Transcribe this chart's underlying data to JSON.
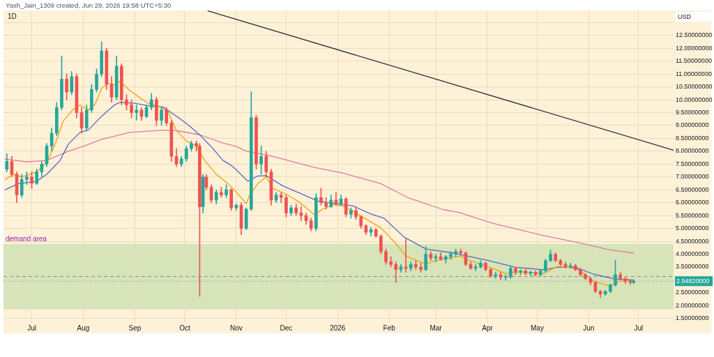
{
  "chart_data": {
    "type": "candlestick",
    "title": "1D",
    "ylabel": "USD",
    "annotations": [
      "Yash_Jain_1309 created, Jun 29, 2026 19:58 UTC+5:30"
    ],
    "xlim": [
      "2025-06-14",
      "2026-07-22"
    ],
    "xticks": [
      {
        "value": "2025-07-01",
        "label": "Jul"
      },
      {
        "value": "2025-08-01",
        "label": "Aug"
      },
      {
        "value": "2025-09-01",
        "label": "Sep"
      },
      {
        "value": "2025-10-01",
        "label": "Oct"
      },
      {
        "value": "2025-11-01",
        "label": "Nov"
      },
      {
        "value": "2025-12-01",
        "label": "Dec"
      },
      {
        "value": "2026-01-01",
        "label": "2026"
      },
      {
        "value": "2026-02-01",
        "label": "Feb"
      },
      {
        "value": "2026-03-01",
        "label": "Mar"
      },
      {
        "value": "2026-04-01",
        "label": "Apr"
      },
      {
        "value": "2026-05-01",
        "label": "May"
      },
      {
        "value": "2026-06-01",
        "label": "Jun"
      },
      {
        "value": "2026-07-01",
        "label": "Jul"
      }
    ],
    "ylim": [
      1.33,
      13.47
    ],
    "yticks": [
      {
        "value": 1.5,
        "label": "1.50000000"
      },
      {
        "value": 2,
        "label": "2.00000000"
      },
      {
        "value": 2.5,
        "label": "2.50000000"
      },
      {
        "value": 3,
        "label": null
      },
      {
        "value": 3.5,
        "label": "3.50000000"
      },
      {
        "value": 4,
        "label": "4.00000000"
      },
      {
        "value": 4.5,
        "label": "4.50000000"
      },
      {
        "value": 5,
        "label": "5.00000000"
      },
      {
        "value": 5.5,
        "label": "5.50000000"
      },
      {
        "value": 6,
        "label": "6.00000000"
      },
      {
        "value": 6.5,
        "label": "6.50000000"
      },
      {
        "value": 7,
        "label": "7.00000000"
      },
      {
        "value": 7.5,
        "label": "7.50000000"
      },
      {
        "value": 8,
        "label": "8.00000000"
      },
      {
        "value": 8.5,
        "label": "8.50000000"
      },
      {
        "value": 9,
        "label": "9.00000000"
      },
      {
        "value": 9.5,
        "label": "9.50000000"
      },
      {
        "value": 10,
        "label": "10.00000000"
      },
      {
        "value": 10.5,
        "label": "10.50000000"
      },
      {
        "value": 11,
        "label": "11.00000000"
      },
      {
        "value": 11.5,
        "label": "11.50000000"
      },
      {
        "value": 12,
        "label": "12.00000000"
      },
      {
        "value": 12.5,
        "label": "12.50000000"
      },
      {
        "value": 13,
        "label": null
      }
    ],
    "grid": true,
    "bands": [
      {
        "axis": "y",
        "from": 1.86,
        "to": 4.39,
        "label": "demand area",
        "color": "#d6e4b9"
      }
    ],
    "ref_lines": [
      {
        "axis": "y",
        "value": 3.13,
        "color": "#a07ca0",
        "line_style": "dashed"
      },
      {
        "axis": "y",
        "value": 2.9482,
        "label": "2.94820000",
        "color": "#26a69a",
        "line_style": "dotted"
      }
    ],
    "series": [
      {
        "x": [
          "2025-06-16",
          "2025-06-19",
          "2025-06-22",
          "2025-06-25",
          "2025-06-28",
          "2025-07-01",
          "2025-07-04",
          "2025-07-07",
          "2025-07-10",
          "2025-07-13",
          "2025-07-16",
          "2025-07-19",
          "2025-07-22",
          "2025-07-25",
          "2025-07-28",
          "2025-07-31",
          "2025-08-03",
          "2025-08-06",
          "2025-08-09",
          "2025-08-12",
          "2025-08-15",
          "2025-08-18",
          "2025-08-21",
          "2025-08-24",
          "2025-08-27",
          "2025-08-30",
          "2025-09-02",
          "2025-09-05",
          "2025-09-08",
          "2025-09-11",
          "2025-09-14",
          "2025-09-17",
          "2025-09-20",
          "2025-09-23",
          "2025-09-26",
          "2025-09-29",
          "2025-10-02",
          "2025-10-05",
          "2025-10-08",
          "2025-10-10",
          "2025-10-12",
          "2025-10-14",
          "2025-10-17",
          "2025-10-20",
          "2025-10-23",
          "2025-10-26",
          "2025-10-29",
          "2025-11-01",
          "2025-11-04",
          "2025-11-07",
          "2025-11-10",
          "2025-11-13",
          "2025-11-16",
          "2025-11-19",
          "2025-11-22",
          "2025-11-25",
          "2025-11-28",
          "2025-12-01",
          "2025-12-04",
          "2025-12-07",
          "2025-12-10",
          "2025-12-13",
          "2025-12-16",
          "2025-12-19",
          "2025-12-22",
          "2025-12-25",
          "2025-12-28",
          "2025-12-31",
          "2026-01-03",
          "2026-01-06",
          "2026-01-09",
          "2026-01-12",
          "2026-01-15",
          "2026-01-18",
          "2026-01-21",
          "2026-01-24",
          "2026-01-27",
          "2026-01-30",
          "2026-02-02",
          "2026-02-05",
          "2026-02-08",
          "2026-02-11",
          "2026-02-14",
          "2026-02-17",
          "2026-02-20",
          "2026-02-23",
          "2026-02-26",
          "2026-03-01",
          "2026-03-04",
          "2026-03-07",
          "2026-03-10",
          "2026-03-13",
          "2026-03-16",
          "2026-03-19",
          "2026-03-22",
          "2026-03-25",
          "2026-03-28",
          "2026-03-31",
          "2026-04-03",
          "2026-04-06",
          "2026-04-09",
          "2026-04-12",
          "2026-04-15",
          "2026-04-18",
          "2026-04-21",
          "2026-04-24",
          "2026-04-27",
          "2026-04-30",
          "2026-05-03",
          "2026-05-06",
          "2026-05-09",
          "2026-05-12",
          "2026-05-15",
          "2026-05-18",
          "2026-05-21",
          "2026-05-24",
          "2026-05-27",
          "2026-05-30",
          "2026-06-02",
          "2026-06-05",
          "2026-06-08",
          "2026-06-11",
          "2026-06-14",
          "2026-06-17",
          "2026-06-20",
          "2026-06-23",
          "2026-06-26",
          "2026-06-28"
        ],
        "ohlc": [
          [
            7.3,
            7.9,
            7.2,
            7.6
          ],
          [
            7.6,
            7.8,
            7.0,
            7.1
          ],
          [
            7.1,
            7.2,
            6.0,
            6.3
          ],
          [
            6.3,
            7.1,
            6.2,
            6.9
          ],
          [
            6.9,
            7.2,
            6.7,
            7.0
          ],
          [
            7.0,
            7.2,
            6.55,
            6.75
          ],
          [
            6.75,
            7.3,
            6.7,
            7.2
          ],
          [
            7.2,
            7.6,
            7.0,
            7.5
          ],
          [
            7.5,
            8.3,
            7.4,
            8.2
          ],
          [
            8.2,
            8.9,
            8.0,
            8.7
          ],
          [
            8.7,
            9.9,
            8.6,
            9.7
          ],
          [
            9.7,
            11.7,
            9.6,
            10.8
          ],
          [
            10.8,
            11.0,
            10.0,
            10.3
          ],
          [
            10.3,
            11.1,
            10.2,
            10.9
          ],
          [
            10.9,
            11.0,
            9.3,
            9.5
          ],
          [
            9.5,
            9.7,
            8.7,
            8.9
          ],
          [
            8.9,
            9.8,
            8.8,
            9.6
          ],
          [
            9.6,
            10.6,
            9.5,
            10.4
          ],
          [
            10.4,
            11.2,
            10.3,
            11.0
          ],
          [
            11.0,
            12.25,
            10.9,
            11.9
          ],
          [
            11.9,
            12.0,
            10.4,
            10.6
          ],
          [
            10.6,
            10.9,
            9.9,
            10.1
          ],
          [
            10.1,
            11.7,
            10.0,
            11.3
          ],
          [
            11.3,
            11.4,
            9.8,
            10.0
          ],
          [
            10.0,
            10.2,
            9.6,
            9.8
          ],
          [
            9.8,
            10.0,
            9.3,
            9.5
          ],
          [
            9.5,
            9.8,
            9.2,
            9.6
          ],
          [
            9.6,
            9.7,
            9.2,
            9.35
          ],
          [
            9.35,
            9.8,
            9.3,
            9.7
          ],
          [
            9.7,
            10.25,
            9.6,
            10.0
          ],
          [
            10.0,
            10.1,
            9.0,
            9.2
          ],
          [
            9.2,
            9.7,
            9.0,
            9.6
          ],
          [
            9.6,
            9.7,
            9.0,
            9.1
          ],
          [
            9.1,
            9.2,
            7.6,
            7.8
          ],
          [
            7.8,
            8.1,
            7.4,
            7.5
          ],
          [
            7.5,
            7.8,
            7.4,
            7.7
          ],
          [
            7.7,
            8.2,
            7.6,
            8.1
          ],
          [
            8.1,
            8.4,
            8.0,
            8.3
          ],
          [
            8.3,
            8.4,
            8.0,
            8.2
          ],
          [
            8.2,
            8.3,
            2.36,
            5.84
          ],
          [
            5.84,
            7.1,
            5.6,
            7.0
          ],
          [
            7.0,
            7.1,
            6.5,
            6.6
          ],
          [
            6.6,
            6.7,
            6.0,
            6.1
          ],
          [
            6.1,
            6.5,
            5.95,
            6.4
          ],
          [
            6.4,
            6.6,
            6.2,
            6.3
          ],
          [
            6.3,
            6.7,
            6.2,
            6.5
          ],
          [
            6.5,
            6.55,
            5.7,
            5.8
          ],
          [
            5.8,
            5.95,
            5.7,
            5.9
          ],
          [
            5.9,
            6.0,
            4.75,
            5.0
          ],
          [
            5.0,
            5.8,
            4.95,
            5.75
          ],
          [
            5.75,
            10.31,
            5.7,
            9.3
          ],
          [
            9.3,
            9.4,
            7.3,
            7.5
          ],
          [
            7.5,
            8.2,
            7.1,
            7.8
          ],
          [
            7.8,
            8.0,
            7.0,
            7.2
          ],
          [
            7.2,
            7.3,
            5.9,
            6.1
          ],
          [
            6.1,
            6.4,
            6.0,
            6.3
          ],
          [
            6.3,
            6.4,
            6.0,
            6.2
          ],
          [
            6.2,
            6.3,
            5.45,
            5.6
          ],
          [
            5.6,
            5.9,
            5.5,
            5.8
          ],
          [
            5.8,
            5.95,
            5.5,
            5.6
          ],
          [
            5.6,
            5.85,
            5.3,
            5.5
          ],
          [
            5.5,
            5.6,
            5.15,
            5.3
          ],
          [
            5.3,
            5.4,
            4.9,
            5.0
          ],
          [
            5.0,
            6.35,
            4.9,
            6.2
          ],
          [
            6.2,
            6.56,
            5.9,
            6.0
          ],
          [
            6.0,
            6.2,
            5.75,
            5.85
          ],
          [
            5.85,
            6.3,
            5.8,
            6.1
          ],
          [
            6.1,
            6.4,
            5.9,
            5.95
          ],
          [
            5.95,
            6.3,
            5.9,
            6.15
          ],
          [
            6.15,
            6.2,
            5.45,
            5.55
          ],
          [
            5.55,
            5.8,
            5.4,
            5.7
          ],
          [
            5.7,
            5.85,
            5.35,
            5.45
          ],
          [
            5.45,
            5.5,
            5.0,
            5.1
          ],
          [
            5.1,
            5.15,
            4.75,
            4.85
          ],
          [
            4.85,
            5.05,
            4.7,
            4.95
          ],
          [
            4.95,
            5.0,
            4.65,
            4.7
          ],
          [
            4.7,
            4.75,
            4.0,
            4.1
          ],
          [
            4.1,
            4.2,
            3.6,
            3.7
          ],
          [
            3.7,
            3.9,
            3.5,
            3.6
          ],
          [
            3.6,
            3.7,
            2.9,
            3.4
          ],
          [
            3.4,
            3.6,
            3.3,
            3.5
          ],
          [
            3.5,
            4.58,
            3.3,
            3.45
          ],
          [
            3.45,
            3.7,
            3.35,
            3.6
          ],
          [
            3.6,
            3.75,
            3.4,
            3.5
          ],
          [
            3.5,
            3.65,
            3.3,
            3.4
          ],
          [
            3.4,
            4.3,
            3.35,
            4.0
          ],
          [
            4.0,
            4.1,
            3.75,
            3.85
          ],
          [
            3.85,
            4.0,
            3.7,
            3.9
          ],
          [
            3.9,
            4.05,
            3.75,
            3.8
          ],
          [
            3.8,
            3.95,
            3.65,
            3.9
          ],
          [
            3.9,
            4.1,
            3.8,
            4.0
          ],
          [
            4.0,
            4.2,
            3.9,
            4.1
          ],
          [
            4.1,
            4.2,
            3.95,
            4.05
          ],
          [
            4.05,
            4.1,
            3.55,
            3.6
          ],
          [
            3.6,
            3.7,
            3.4,
            3.45
          ],
          [
            3.45,
            3.6,
            3.35,
            3.5
          ],
          [
            3.5,
            3.75,
            3.45,
            3.65
          ],
          [
            3.65,
            3.7,
            3.35,
            3.4
          ],
          [
            3.4,
            3.45,
            3.1,
            3.15
          ],
          [
            3.15,
            3.3,
            3.05,
            3.2
          ],
          [
            3.2,
            3.3,
            3.0,
            3.1
          ],
          [
            3.1,
            3.2,
            2.98,
            3.12
          ],
          [
            3.12,
            3.55,
            3.05,
            3.45
          ],
          [
            3.45,
            3.5,
            3.2,
            3.3
          ],
          [
            3.3,
            3.4,
            3.2,
            3.35
          ],
          [
            3.35,
            3.4,
            3.2,
            3.25
          ],
          [
            3.25,
            3.35,
            3.15,
            3.3
          ],
          [
            3.3,
            3.35,
            3.15,
            3.2
          ],
          [
            3.2,
            3.4,
            3.15,
            3.35
          ],
          [
            3.35,
            3.8,
            3.3,
            3.75
          ],
          [
            3.75,
            4.17,
            3.7,
            4.0
          ],
          [
            4.0,
            4.05,
            3.7,
            3.75
          ],
          [
            3.75,
            3.8,
            3.55,
            3.6
          ],
          [
            3.6,
            3.7,
            3.45,
            3.5
          ],
          [
            3.5,
            3.65,
            3.45,
            3.55
          ],
          [
            3.55,
            3.6,
            3.35,
            3.4
          ],
          [
            3.4,
            3.45,
            3.15,
            3.2
          ],
          [
            3.2,
            3.25,
            3.0,
            3.05
          ],
          [
            3.05,
            3.1,
            2.8,
            2.9
          ],
          [
            2.9,
            2.95,
            2.5,
            2.55
          ],
          [
            2.55,
            2.6,
            2.31,
            2.45
          ],
          [
            2.45,
            2.6,
            2.4,
            2.55
          ],
          [
            2.55,
            2.85,
            2.5,
            2.8
          ],
          [
            2.8,
            3.76,
            2.75,
            3.2
          ],
          [
            3.2,
            3.3,
            3.0,
            3.05
          ],
          [
            3.05,
            3.1,
            2.85,
            2.95
          ],
          [
            2.95,
            3.0,
            2.82,
            2.9
          ],
          [
            2.9,
            3.0,
            2.85,
            2.9482
          ]
        ],
        "colors": [
          "#26a69a",
          "#ef5350",
          "#ef5350",
          "#26a69a",
          "#26a69a",
          "#ef5350",
          "#26a69a",
          "#26a69a",
          "#26a69a",
          "#26a69a",
          "#26a69a",
          "#26a69a",
          "#ef5350",
          "#26a69a",
          "#ef5350",
          "#ef5350",
          "#26a69a",
          "#26a69a",
          "#26a69a",
          "#26a69a",
          "#ef5350",
          "#ef5350",
          "#26a69a",
          "#ef5350",
          "#ef5350",
          "#ef5350",
          "#26a69a",
          "#ef5350",
          "#26a69a",
          "#26a69a",
          "#ef5350",
          "#26a69a",
          "#ef5350",
          "#ef5350",
          "#ef5350",
          "#26a69a",
          "#26a69a",
          "#26a69a",
          "#ef5350",
          "#ef5350",
          "#26a69a",
          "#ef5350",
          "#ef5350",
          "#26a69a",
          "#ef5350",
          "#26a69a",
          "#ef5350",
          "#26a69a",
          "#ef5350",
          "#26a69a",
          "#26a69a",
          "#ef5350",
          "#26a69a",
          "#ef5350",
          "#ef5350",
          "#26a69a",
          "#ef5350",
          "#ef5350",
          "#26a69a",
          "#ef5350",
          "#ef5350",
          "#ef5350",
          "#ef5350",
          "#26a69a",
          "#ef5350",
          "#ef5350",
          "#26a69a",
          "#ef5350",
          "#26a69a",
          "#ef5350",
          "#26a69a",
          "#ef5350",
          "#ef5350",
          "#ef5350",
          "#26a69a",
          "#ef5350",
          "#ef5350",
          "#ef5350",
          "#ef5350",
          "#ef5350",
          "#26a69a",
          "#ef5350",
          "#26a69a",
          "#ef5350",
          "#ef5350",
          "#26a69a",
          "#ef5350",
          "#26a69a",
          "#ef5350",
          "#26a69a",
          "#26a69a",
          "#26a69a",
          "#ef5350",
          "#ef5350",
          "#ef5350",
          "#26a69a",
          "#26a69a",
          "#ef5350",
          "#ef5350",
          "#26a69a",
          "#ef5350",
          "#26a69a",
          "#26a69a",
          "#ef5350",
          "#26a69a",
          "#ef5350",
          "#26a69a",
          "#ef5350",
          "#26a69a",
          "#26a69a",
          "#26a69a",
          "#ef5350",
          "#ef5350",
          "#ef5350",
          "#26a69a",
          "#ef5350",
          "#ef5350",
          "#ef5350",
          "#ef5350",
          "#ef5350",
          "#ef5350",
          "#26a69a",
          "#26a69a",
          "#26a69a",
          "#ef5350",
          "#ef5350",
          "#ef5350",
          "#26a69a"
        ]
      },
      {
        "type": "line",
        "color": "#f0a30a",
        "x": [
          "2025-06-15",
          "2025-06-20",
          "2025-06-25",
          "2025-07-04",
          "2025-07-10",
          "2025-07-15",
          "2025-07-20",
          "2025-07-26",
          "2025-07-30",
          "2025-08-04",
          "2025-08-08",
          "2025-08-12",
          "2025-08-16",
          "2025-08-20",
          "2025-08-23",
          "2025-08-29",
          "2025-09-04",
          "2025-09-09",
          "2025-09-15",
          "2025-09-21",
          "2025-09-26",
          "2025-10-02",
          "2025-10-08",
          "2025-10-13",
          "2025-10-20",
          "2025-10-27",
          "2025-11-01",
          "2025-11-07",
          "2025-11-09",
          "2025-11-14",
          "2025-11-19",
          "2025-11-23",
          "2025-12-02",
          "2025-12-09",
          "2025-12-18",
          "2025-12-23",
          "2025-12-30",
          "2026-01-06",
          "2026-01-15",
          "2026-01-27",
          "2026-02-04",
          "2026-02-11",
          "2026-02-19",
          "2026-02-23",
          "2026-03-03",
          "2026-03-16",
          "2026-03-21",
          "2026-04-01",
          "2026-04-12",
          "2026-04-22",
          "2026-05-05",
          "2026-05-13",
          "2026-05-20",
          "2026-05-26",
          "2026-06-04",
          "2026-06-13",
          "2026-06-16",
          "2026-06-19",
          "2026-06-27"
        ],
        "values": [
          6.9,
          7.1,
          7.0,
          7.2,
          7.56,
          8.27,
          9.18,
          9.63,
          9.8,
          9.6,
          9.81,
          10.44,
          10.63,
          10.58,
          10.71,
          10.36,
          10.08,
          9.86,
          9.76,
          9.54,
          8.8,
          8.4,
          8.19,
          7.64,
          7.1,
          6.74,
          6.42,
          5.96,
          6.29,
          6.74,
          7.0,
          6.56,
          6.29,
          6.02,
          5.53,
          5.75,
          5.93,
          5.83,
          5.48,
          5.02,
          4.48,
          3.93,
          3.71,
          3.63,
          3.77,
          3.93,
          3.76,
          3.52,
          3.25,
          3.31,
          3.25,
          3.52,
          3.49,
          3.39,
          2.95,
          2.77,
          2.82,
          2.95,
          2.95
        ]
      },
      {
        "type": "line",
        "color": "#5867c9",
        "x": [
          "2025-06-15",
          "2025-06-23",
          "2025-07-04",
          "2025-07-10",
          "2025-07-18",
          "2025-07-23",
          "2025-07-30",
          "2025-08-04",
          "2025-08-12",
          "2025-08-20",
          "2025-08-23",
          "2025-09-01",
          "2025-09-09",
          "2025-09-18",
          "2025-09-26",
          "2025-10-02",
          "2025-10-10",
          "2025-10-18",
          "2025-10-24",
          "2025-10-29",
          "2025-11-01",
          "2025-11-08",
          "2025-11-14",
          "2025-11-19",
          "2025-11-29",
          "2025-12-12",
          "2025-12-20",
          "2025-12-31",
          "2026-01-10",
          "2026-01-21",
          "2026-01-29",
          "2026-02-10",
          "2026-02-23",
          "2026-03-12",
          "2026-03-16",
          "2026-04-01",
          "2026-04-18",
          "2026-05-05",
          "2026-05-13",
          "2026-05-24",
          "2026-06-04",
          "2026-06-16",
          "2026-06-28"
        ],
        "values": [
          6.5,
          6.74,
          6.83,
          7.1,
          7.64,
          8.27,
          8.73,
          8.82,
          9.36,
          9.81,
          9.9,
          9.86,
          9.77,
          9.72,
          9.36,
          9.08,
          8.64,
          8.1,
          7.64,
          7.45,
          7.28,
          6.83,
          7.04,
          7.05,
          6.65,
          6.29,
          6.06,
          5.96,
          5.88,
          5.56,
          5.39,
          4.66,
          4.2,
          4.04,
          3.98,
          3.76,
          3.49,
          3.39,
          3.49,
          3.49,
          3.22,
          3.04,
          2.99
        ]
      },
      {
        "type": "line",
        "color": "#e07ba0",
        "x": [
          "2025-06-15",
          "2025-06-28",
          "2025-07-10",
          "2025-07-23",
          "2025-08-01",
          "2025-08-12",
          "2025-08-29",
          "2025-09-18",
          "2025-09-26",
          "2025-10-10",
          "2025-10-24",
          "2025-11-01",
          "2025-11-07",
          "2025-11-21",
          "2025-12-18",
          "2026-01-04",
          "2026-01-27",
          "2026-02-12",
          "2026-03-06",
          "2026-03-15",
          "2026-04-04",
          "2026-05-05",
          "2026-05-30",
          "2026-06-13",
          "2026-06-28"
        ],
        "values": [
          7.69,
          7.59,
          7.64,
          8.0,
          8.19,
          8.46,
          8.73,
          8.82,
          8.8,
          8.64,
          8.32,
          8.19,
          8.0,
          7.83,
          7.37,
          7.15,
          6.74,
          6.2,
          5.72,
          5.62,
          5.2,
          4.72,
          4.39,
          4.17,
          4.04
        ]
      },
      {
        "type": "line",
        "color": "#2a2e39",
        "x": [
          "2025-10-15",
          "2026-07-22"
        ],
        "values": [
          13.45,
          8.04
        ]
      }
    ]
  }
}
